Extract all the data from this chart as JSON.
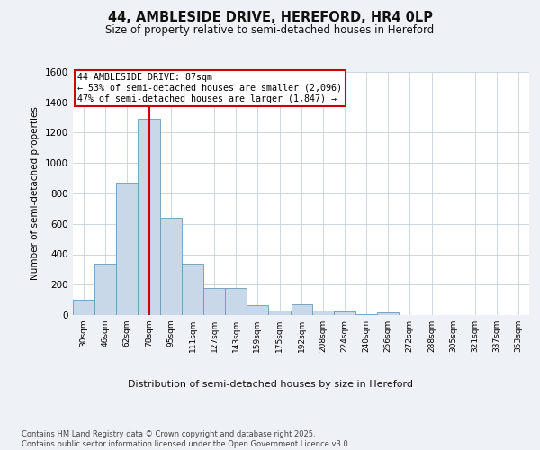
{
  "title_line1": "44, AMBLESIDE DRIVE, HEREFORD, HR4 0LP",
  "title_line2": "Size of property relative to semi-detached houses in Hereford",
  "xlabel": "Distribution of semi-detached houses by size in Hereford",
  "ylabel": "Number of semi-detached properties",
  "annotation_title": "44 AMBLESIDE DRIVE: 87sqm",
  "annotation_line1": "← 53% of semi-detached houses are smaller (2,096)",
  "annotation_line2": "47% of semi-detached houses are larger (1,847) →",
  "footer_line1": "Contains HM Land Registry data © Crown copyright and database right 2025.",
  "footer_line2": "Contains public sector information licensed under the Open Government Licence v3.0.",
  "bar_color": "#c8d8e8",
  "bar_edge_color": "#6699bb",
  "grid_color": "#c8d0dc",
  "vline_color": "#cc0000",
  "vline_x": 87,
  "categories": [
    "30sqm",
    "46sqm",
    "62sqm",
    "78sqm",
    "95sqm",
    "111sqm",
    "127sqm",
    "143sqm",
    "159sqm",
    "175sqm",
    "192sqm",
    "208sqm",
    "224sqm",
    "240sqm",
    "256sqm",
    "272sqm",
    "288sqm",
    "305sqm",
    "321sqm",
    "337sqm",
    "353sqm"
  ],
  "bin_edges": [
    30,
    46,
    62,
    78,
    95,
    111,
    127,
    143,
    159,
    175,
    192,
    208,
    224,
    240,
    256,
    272,
    288,
    305,
    321,
    337,
    353
  ],
  "values": [
    100,
    340,
    870,
    1290,
    640,
    340,
    175,
    175,
    65,
    30,
    70,
    30,
    25,
    5,
    15,
    2,
    0,
    2,
    0,
    2,
    0
  ],
  "ylim": [
    0,
    1600
  ],
  "yticks": [
    0,
    200,
    400,
    600,
    800,
    1000,
    1200,
    1400,
    1600
  ],
  "background_color": "#eef2f7",
  "plot_bg_color": "#ffffff"
}
